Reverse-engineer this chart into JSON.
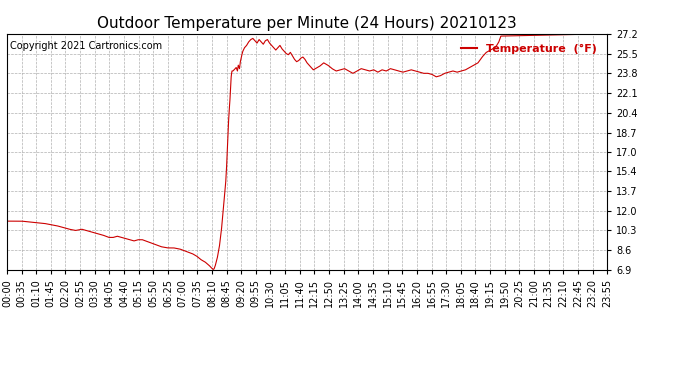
{
  "title": "Outdoor Temperature per Minute (24 Hours) 20210123",
  "copyright_text": "Copyright 2021 Cartronics.com",
  "legend_label": "Temperature  (°F)",
  "yticks": [
    6.9,
    8.6,
    10.3,
    12.0,
    13.7,
    15.4,
    17.0,
    18.7,
    20.4,
    22.1,
    23.8,
    25.5,
    27.2
  ],
  "ymin": 6.9,
  "ymax": 27.2,
  "line_color": "#cc0000",
  "bg_color": "#ffffff",
  "grid_color": "#b0b0b0",
  "title_fontsize": 11,
  "label_fontsize": 7,
  "copyright_fontsize": 7,
  "legend_fontsize": 8,
  "xtick_labels": [
    "00:00",
    "00:35",
    "01:10",
    "01:45",
    "02:20",
    "02:55",
    "03:30",
    "04:05",
    "04:40",
    "05:15",
    "05:50",
    "06:25",
    "07:00",
    "07:35",
    "08:10",
    "08:45",
    "09:20",
    "09:55",
    "10:30",
    "11:05",
    "11:40",
    "12:15",
    "12:50",
    "13:25",
    "14:00",
    "14:35",
    "15:10",
    "15:45",
    "16:20",
    "16:55",
    "17:30",
    "18:05",
    "18:40",
    "19:15",
    "19:50",
    "20:25",
    "21:00",
    "21:35",
    "22:10",
    "22:45",
    "23:20",
    "23:55"
  ],
  "key_points": [
    [
      0,
      11.1
    ],
    [
      35,
      11.1
    ],
    [
      60,
      11.0
    ],
    [
      90,
      10.9
    ],
    [
      120,
      10.7
    ],
    [
      150,
      10.4
    ],
    [
      165,
      10.3
    ],
    [
      180,
      10.4
    ],
    [
      200,
      10.2
    ],
    [
      210,
      10.1
    ],
    [
      230,
      9.9
    ],
    [
      245,
      9.7
    ],
    [
      255,
      9.7
    ],
    [
      265,
      9.8
    ],
    [
      275,
      9.7
    ],
    [
      285,
      9.6
    ],
    [
      295,
      9.5
    ],
    [
      305,
      9.4
    ],
    [
      315,
      9.5
    ],
    [
      325,
      9.5
    ],
    [
      340,
      9.3
    ],
    [
      355,
      9.1
    ],
    [
      370,
      8.9
    ],
    [
      385,
      8.8
    ],
    [
      400,
      8.8
    ],
    [
      415,
      8.7
    ],
    [
      430,
      8.5
    ],
    [
      445,
      8.3
    ],
    [
      455,
      8.1
    ],
    [
      465,
      7.8
    ],
    [
      475,
      7.6
    ],
    [
      485,
      7.3
    ],
    [
      490,
      7.1
    ],
    [
      495,
      6.95
    ],
    [
      497,
      7.0
    ],
    [
      500,
      7.3
    ],
    [
      505,
      8.0
    ],
    [
      510,
      9.0
    ],
    [
      515,
      10.5
    ],
    [
      520,
      12.5
    ],
    [
      525,
      14.5
    ],
    [
      527,
      15.8
    ],
    [
      529,
      17.5
    ],
    [
      531,
      19.2
    ],
    [
      533,
      20.5
    ],
    [
      534,
      21.0
    ],
    [
      535,
      21.5
    ],
    [
      536,
      22.2
    ],
    [
      537,
      23.0
    ],
    [
      538,
      23.5
    ],
    [
      539,
      23.8
    ],
    [
      540,
      24.0
    ],
    [
      542,
      24.0
    ],
    [
      545,
      24.1
    ],
    [
      550,
      24.3
    ],
    [
      553,
      24.0
    ],
    [
      555,
      24.5
    ],
    [
      558,
      24.2
    ],
    [
      560,
      24.8
    ],
    [
      563,
      25.3
    ],
    [
      566,
      25.7
    ],
    [
      570,
      26.0
    ],
    [
      575,
      26.2
    ],
    [
      580,
      26.5
    ],
    [
      585,
      26.7
    ],
    [
      590,
      26.8
    ],
    [
      595,
      26.6
    ],
    [
      600,
      26.4
    ],
    [
      605,
      26.7
    ],
    [
      610,
      26.5
    ],
    [
      615,
      26.3
    ],
    [
      620,
      26.6
    ],
    [
      625,
      26.7
    ],
    [
      630,
      26.4
    ],
    [
      635,
      26.2
    ],
    [
      640,
      26.0
    ],
    [
      645,
      25.8
    ],
    [
      650,
      26.0
    ],
    [
      655,
      26.2
    ],
    [
      660,
      25.9
    ],
    [
      665,
      25.7
    ],
    [
      670,
      25.5
    ],
    [
      675,
      25.4
    ],
    [
      680,
      25.6
    ],
    [
      685,
      25.3
    ],
    [
      690,
      25.0
    ],
    [
      695,
      24.8
    ],
    [
      700,
      24.9
    ],
    [
      705,
      25.1
    ],
    [
      710,
      25.2
    ],
    [
      715,
      25.0
    ],
    [
      720,
      24.7
    ],
    [
      725,
      24.5
    ],
    [
      730,
      24.3
    ],
    [
      735,
      24.1
    ],
    [
      740,
      24.2
    ],
    [
      750,
      24.4
    ],
    [
      760,
      24.7
    ],
    [
      770,
      24.5
    ],
    [
      780,
      24.2
    ],
    [
      790,
      24.0
    ],
    [
      800,
      24.1
    ],
    [
      810,
      24.2
    ],
    [
      820,
      24.0
    ],
    [
      830,
      23.8
    ],
    [
      840,
      24.0
    ],
    [
      850,
      24.2
    ],
    [
      860,
      24.1
    ],
    [
      870,
      24.0
    ],
    [
      880,
      24.1
    ],
    [
      890,
      23.9
    ],
    [
      900,
      24.1
    ],
    [
      910,
      24.0
    ],
    [
      920,
      24.2
    ],
    [
      930,
      24.1
    ],
    [
      940,
      24.0
    ],
    [
      950,
      23.9
    ],
    [
      960,
      24.0
    ],
    [
      970,
      24.1
    ],
    [
      980,
      24.0
    ],
    [
      990,
      23.9
    ],
    [
      1000,
      23.8
    ],
    [
      1010,
      23.8
    ],
    [
      1020,
      23.7
    ],
    [
      1025,
      23.6
    ],
    [
      1030,
      23.5
    ],
    [
      1040,
      23.6
    ],
    [
      1045,
      23.7
    ],
    [
      1050,
      23.8
    ],
    [
      1060,
      23.9
    ],
    [
      1070,
      24.0
    ],
    [
      1080,
      23.9
    ],
    [
      1090,
      24.0
    ],
    [
      1100,
      24.1
    ],
    [
      1110,
      24.3
    ],
    [
      1120,
      24.5
    ],
    [
      1130,
      24.7
    ],
    [
      1140,
      25.2
    ],
    [
      1150,
      25.6
    ],
    [
      1160,
      25.8
    ],
    [
      1170,
      26.0
    ],
    [
      1175,
      26.2
    ],
    [
      1180,
      26.5
    ],
    [
      1185,
      27.0
    ],
    [
      1440,
      27.2
    ]
  ]
}
